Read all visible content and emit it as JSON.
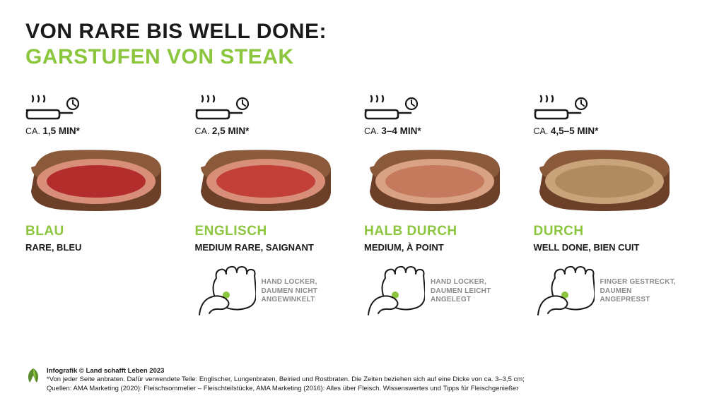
{
  "colors": {
    "accent": "#8cc63f",
    "text": "#1a1a1a",
    "hand_caption": "#8a8a8a",
    "crust_dark": "#6b3f28",
    "crust_mid": "#8a5a3a",
    "bg": "#ffffff"
  },
  "header": {
    "line1": "VON RARE BIS WELL DONE:",
    "line2": "GARSTUFEN VON STEAK"
  },
  "time_prefix": "CA.",
  "stages": [
    {
      "time": "1,5 MIN*",
      "title": "BLAU",
      "subtitle": "RARE, BLEU",
      "steak_colors": {
        "ring": "#d98e7a",
        "inner": "#b42d2d"
      },
      "hand": null
    },
    {
      "time": "2,5 MIN*",
      "title": "ENGLISCH",
      "subtitle": "MEDIUM RARE, SAIGNANT",
      "steak_colors": {
        "ring": "#d98e7a",
        "inner": "#c24038"
      },
      "hand": {
        "caption": "HAND LOCKER,\nDAUMEN NICHT\nANGEWINKELT"
      }
    },
    {
      "time": "3–4 MIN*",
      "title": "HALB DURCH",
      "subtitle": "MEDIUM, À POINT",
      "steak_colors": {
        "ring": "#d9a285",
        "inner": "#c57a5e"
      },
      "hand": {
        "caption": "HAND LOCKER,\nDAUMEN LEICHT\nANGELEGT"
      }
    },
    {
      "time": "4,5–5 MIN*",
      "title": "DURCH",
      "subtitle": "WELL DONE, BIEN CUIT",
      "steak_colors": {
        "ring": "#c9a47a",
        "inner": "#b08a60"
      },
      "hand": {
        "caption": "FINGER GESTRECKT,\nDAUMEN ANGEPRESST"
      }
    }
  ],
  "footer": {
    "credit": "Infografik © Land schafft Leben 2023",
    "note1": "*Von jeder Seite anbraten. Dafür verwendete Teile: Englischer, Lungenbraten, Beiried und Rostbraten. Die Zeiten beziehen sich auf eine Dicke von ca. 3–3,5 cm;",
    "note2": "Quellen: AMA Marketing (2020): Fleischsommelier – Fleischteilstücke, AMA Marketing (2016): Alles über Fleisch. Wissenswertes und Tipps für Fleischgenießer"
  }
}
